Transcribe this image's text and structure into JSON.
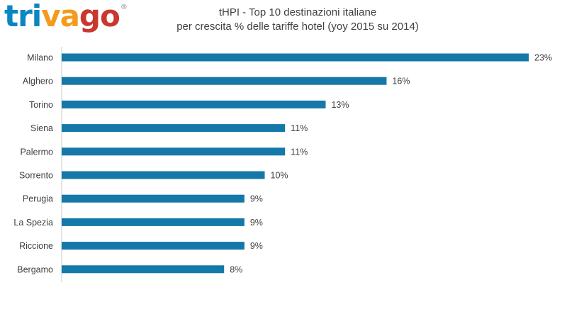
{
  "logo": {
    "segments": [
      {
        "text": "tri",
        "color": "#0a86c2"
      },
      {
        "text": "va",
        "color": "#f59a1c"
      },
      {
        "text": "go",
        "color": "#c8382f"
      }
    ],
    "reg_mark": "®"
  },
  "chart_data": {
    "type": "bar",
    "orientation": "horizontal",
    "title": "tHPI - Top 10 destinazioni italiane",
    "subtitle": "per crescita % delle tariffe hotel (yoy 2015 su 2014)",
    "categories": [
      "Milano",
      "Alghero",
      "Torino",
      "Siena",
      "Palermo",
      "Sorrento",
      "Perugia",
      "La Spezia",
      "Riccione",
      "Bergamo"
    ],
    "values": [
      23,
      16,
      13,
      11,
      11,
      10,
      9,
      9,
      9,
      8
    ],
    "value_labels": [
      "23%",
      "16%",
      "13%",
      "11%",
      "11%",
      "10%",
      "9%",
      "9%",
      "9%",
      "8%"
    ],
    "xlabel": "",
    "ylabel": "",
    "xlim": [
      0,
      23
    ],
    "bar_color": "#1478a8",
    "grid": false,
    "legend": "none"
  }
}
